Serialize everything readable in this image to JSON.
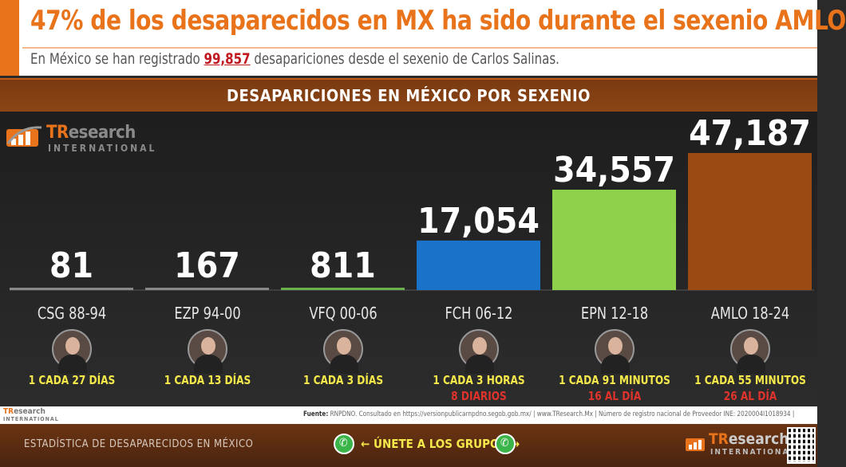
{
  "header": {
    "title": "47% de los desaparecidos en MX ha sido durante el sexenio AMLO",
    "subtitle_before": "En México se han registrado",
    "subtitle_highlight": "99,857",
    "subtitle_after": "desapariciones desde el sexenio de Carlos Salinas."
  },
  "band": {
    "title": "DESAPARICIONES EN MÉXICO POR SEXENIO"
  },
  "logo": {
    "name_a": "TR",
    "name_b": "esearch",
    "sub": "INTERNATIONAL"
  },
  "chart_data": {
    "type": "bar",
    "title": "DESAPARICIONES EN MÉXICO POR SEXENIO",
    "categories": [
      "CSG 88-94",
      "EZP 94-00",
      "VFQ 00-06",
      "FCH 06-12",
      "EPN 12-18",
      "AMLO 18-24"
    ],
    "values": [
      81,
      167,
      811,
      17054,
      34557,
      47187
    ],
    "value_labels": [
      "81",
      "167",
      "811",
      "17,054",
      "34,557",
      "47,187"
    ],
    "colors": [
      "#888888",
      "#888888",
      "#6ab04c",
      "#1a73c8",
      "#8ed14b",
      "#9c4a14"
    ],
    "ylim": [
      0,
      47187
    ],
    "grid": false,
    "legend": "none"
  },
  "rates": [
    {
      "line1": "1 CADA 27 DÍAS",
      "line2": ""
    },
    {
      "line1": "1 CADA 13 DÍAS",
      "line2": ""
    },
    {
      "line1": "1 CADA 3 DÍAS",
      "line2": ""
    },
    {
      "line1": "1 CADA 3 HORAS",
      "line2": "8 DIARIOS"
    },
    {
      "line1": "1 CADA 91 MINUTOS",
      "line2": "16 AL DÍA"
    },
    {
      "line1": "1 CADA 55 MINUTOS",
      "line2": "26 AL DÍA"
    }
  ],
  "colors": {
    "accent": "#e8731a",
    "highlight": "#c0181f",
    "rate": "#f4e84a",
    "rate_secondary": "#e0332b"
  },
  "footer": {
    "logo_a": "TR",
    "logo_b": "esearch",
    "logo_sub": "INTERNATIONAL",
    "source_label": "Fuente:",
    "source_text": "RNPDNO. Consultado en https://versionpublicarnpdno.segob.gob.mx/ | www.TResearch.Mx | Número de registro nacional de Proveedor INE: 2020004I1018934 |"
  },
  "bottom": {
    "left_text": "ESTADÍSTICA DE DESAPARECIDOS EN MÉXICO",
    "join_text": "← ÚNETE A LOS GRUPOS →",
    "whatsapp_icon": "whatsapp-icon",
    "logo_a": "TR",
    "logo_b": "esearch",
    "logo_sub": "INTERNATIONAL"
  }
}
